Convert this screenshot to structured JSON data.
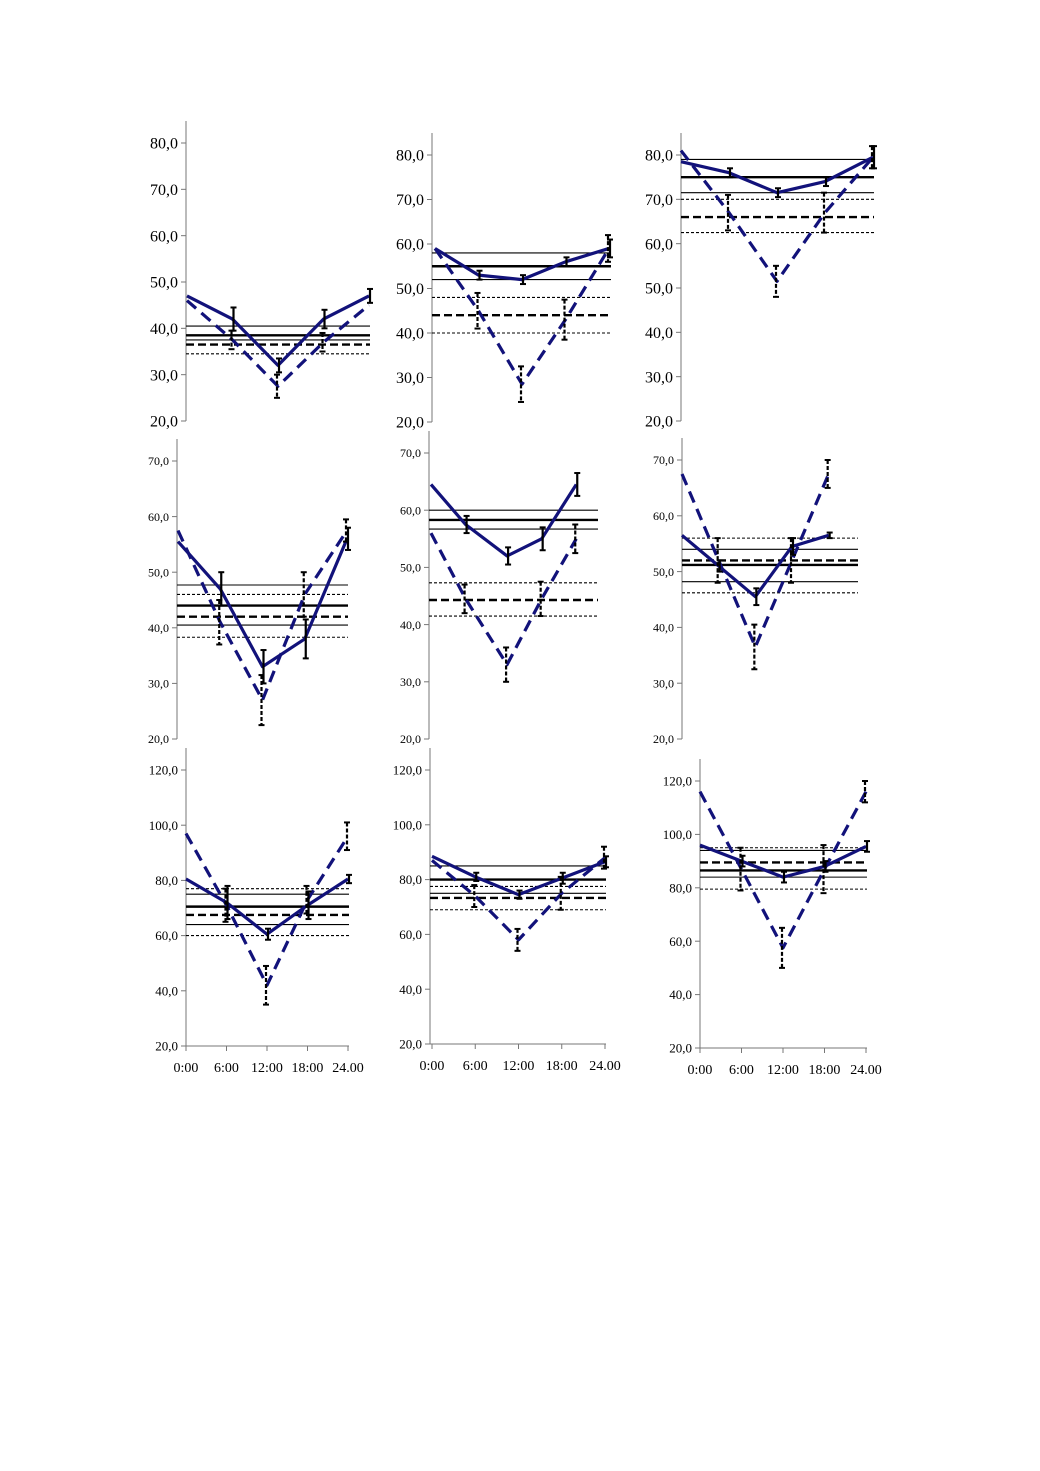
{
  "chart_data": [
    {
      "type": "line",
      "ylim": [
        20,
        80
      ],
      "yticks": [
        "20,0",
        "30,0",
        "40,0",
        "50,0",
        "60,0",
        "70,0",
        "80,0"
      ],
      "xticks": [],
      "series": [
        {
          "style": "solid",
          "x": [
            0,
            6,
            12,
            18,
            24
          ],
          "y": [
            47,
            42,
            32,
            42,
            47
          ],
          "err": [
            0,
            2.5,
            1.5,
            2,
            1.5
          ]
        },
        {
          "style": "dashed",
          "x": [
            0,
            6,
            12,
            18,
            24
          ],
          "y": [
            46,
            37.5,
            27.5,
            37,
            45
          ],
          "err": [
            0,
            2,
            2.5,
            2,
            0
          ]
        }
      ],
      "hlines": [
        {
          "style": "thin",
          "y": 40.5
        },
        {
          "style": "thick",
          "y": 38.5
        },
        {
          "style": "thin",
          "y": 37.5
        },
        {
          "style": "thin-dashed",
          "y": 38.5
        },
        {
          "style": "thick-dashed",
          "y": 36.5
        },
        {
          "style": "thin-dashed",
          "y": 34.5
        }
      ]
    },
    {
      "type": "line",
      "ylim": [
        20,
        80
      ],
      "yticks": [
        "20,0",
        "30,0",
        "40,0",
        "50,0",
        "60,0",
        "70,0",
        "80,0"
      ],
      "xticks": [],
      "series": [
        {
          "style": "solid",
          "x": [
            0,
            6,
            12,
            18,
            24
          ],
          "y": [
            59,
            53,
            52,
            56,
            59
          ],
          "err": [
            0,
            1,
            1,
            1,
            2
          ]
        },
        {
          "style": "dashed",
          "x": [
            0,
            6,
            12,
            18,
            24
          ],
          "y": [
            59,
            45,
            28.5,
            43,
            59
          ],
          "err": [
            0,
            4,
            4,
            4.5,
            3
          ]
        }
      ],
      "hlines": [
        {
          "style": "thin",
          "y": 58
        },
        {
          "style": "thick",
          "y": 55
        },
        {
          "style": "thin",
          "y": 52
        },
        {
          "style": "thin-dashed",
          "y": 48
        },
        {
          "style": "thick-dashed",
          "y": 44
        },
        {
          "style": "thin-dashed",
          "y": 40
        }
      ]
    },
    {
      "type": "line",
      "ylim": [
        20,
        80
      ],
      "yticks": [
        "20,0",
        "30,0",
        "40,0",
        "50,0",
        "60,0",
        "70,0",
        "80,0"
      ],
      "xticks": [],
      "series": [
        {
          "style": "solid",
          "x": [
            0,
            6,
            12,
            18,
            24
          ],
          "y": [
            78.5,
            76,
            71.5,
            74,
            79.5
          ],
          "err": [
            0,
            1,
            1,
            1,
            2.5
          ]
        },
        {
          "style": "dashed",
          "x": [
            0,
            6,
            12,
            18,
            24
          ],
          "y": [
            81,
            67,
            51.5,
            67,
            79.5
          ],
          "err": [
            0,
            4,
            3.5,
            4.5,
            2.5
          ]
        }
      ],
      "hlines": [
        {
          "style": "thin",
          "y": 79
        },
        {
          "style": "thick",
          "y": 75
        },
        {
          "style": "thin",
          "y": 71.5
        },
        {
          "style": "thin-dashed",
          "y": 70
        },
        {
          "style": "thick-dashed",
          "y": 66
        },
        {
          "style": "thin-dashed",
          "y": 62.5
        }
      ]
    },
    {
      "type": "line",
      "ylim": [
        20,
        70
      ],
      "yticks": [
        "20,0",
        "30,0",
        "40,0",
        "50,0",
        "60,0",
        "70,0"
      ],
      "xticks": [],
      "series": [
        {
          "style": "solid",
          "x": [
            0,
            6,
            12,
            18,
            24
          ],
          "y": [
            55.5,
            47,
            33,
            38,
            56
          ],
          "err": [
            0,
            3,
            3,
            3.5,
            2
          ]
        },
        {
          "style": "dashed",
          "x": [
            0,
            6,
            12,
            18,
            24
          ],
          "y": [
            57.5,
            41,
            27,
            46,
            57.5
          ],
          "err": [
            0,
            4,
            4.5,
            4,
            2
          ]
        }
      ],
      "hlines": [
        {
          "style": "thin",
          "y": 47.7
        },
        {
          "style": "thick",
          "y": 44
        },
        {
          "style": "thin",
          "y": 40.5
        },
        {
          "style": "thin-dashed",
          "y": 46
        },
        {
          "style": "thick-dashed",
          "y": 42
        },
        {
          "style": "thin-dashed",
          "y": 38.3
        }
      ]
    },
    {
      "type": "line",
      "ylim": [
        20,
        70
      ],
      "yticks": [
        "20,0",
        "30,0",
        "40,0",
        "50,0",
        "60,0",
        "70,0"
      ],
      "xticks": [],
      "series": [
        {
          "style": "solid",
          "x": [
            0,
            5,
            11,
            16,
            21
          ],
          "y": [
            64.5,
            57.5,
            52,
            55,
            64.5
          ],
          "err": [
            0,
            1.5,
            1.5,
            2,
            2
          ]
        },
        {
          "style": "dashed",
          "x": [
            0,
            5,
            11,
            16,
            21
          ],
          "y": [
            56,
            44.5,
            33,
            44.5,
            55
          ],
          "err": [
            0,
            2.5,
            3,
            3,
            2.5
          ]
        }
      ],
      "hlines": [
        {
          "style": "thin",
          "y": 60
        },
        {
          "style": "thick",
          "y": 58.3
        },
        {
          "style": "thin",
          "y": 56.7
        },
        {
          "style": "thin-dashed",
          "y": 47.3
        },
        {
          "style": "thick-dashed",
          "y": 44.3
        },
        {
          "style": "thin-dashed",
          "y": 41.5
        }
      ]
    },
    {
      "type": "line",
      "ylim": [
        20,
        70
      ],
      "yticks": [
        "20,0",
        "30,0",
        "40,0",
        "50,0",
        "60,0",
        "70,0"
      ],
      "xticks": [],
      "series": [
        {
          "style": "solid",
          "x": [
            0,
            5,
            10,
            15,
            20
          ],
          "y": [
            56.5,
            51,
            45.5,
            54.5,
            56.5
          ],
          "err": [
            0,
            1,
            1.5,
            1.5,
            0.5
          ]
        },
        {
          "style": "dashed",
          "x": [
            0,
            5,
            10,
            15,
            20
          ],
          "y": [
            67.5,
            52,
            36.5,
            52,
            67.5
          ],
          "err": [
            0,
            4,
            4,
            4,
            2.5
          ]
        }
      ],
      "hlines": [
        {
          "style": "thin",
          "y": 54
        },
        {
          "style": "thick",
          "y": 51.2
        },
        {
          "style": "thin",
          "y": 48.2
        },
        {
          "style": "thin-dashed",
          "y": 56
        },
        {
          "style": "thick-dashed",
          "y": 52
        },
        {
          "style": "thin-dashed",
          "y": 46.2
        }
      ]
    },
    {
      "type": "line",
      "ylim": [
        20,
        120
      ],
      "yticks": [
        "20,0",
        "40,0",
        "60,0",
        "80,0",
        "100,0",
        "120,0"
      ],
      "xticks": [
        "0:00",
        "6:00",
        "12:00",
        "18:00",
        "24.00"
      ],
      "series": [
        {
          "style": "solid",
          "x": [
            0,
            6,
            12,
            18,
            24
          ],
          "y": [
            80.5,
            72,
            60.5,
            71,
            80.5
          ],
          "err": [
            0,
            6,
            2,
            5,
            1.5
          ]
        },
        {
          "style": "dashed",
          "x": [
            0,
            6,
            12,
            18,
            24
          ],
          "y": [
            97,
            71,
            42,
            73,
            96
          ],
          "err": [
            0,
            6,
            7,
            5,
            5
          ]
        }
      ],
      "hlines": [
        {
          "style": "thin",
          "y": 75
        },
        {
          "style": "thick",
          "y": 70.5
        },
        {
          "style": "thin",
          "y": 64
        },
        {
          "style": "thin-dashed",
          "y": 77
        },
        {
          "style": "thick-dashed",
          "y": 67.5
        },
        {
          "style": "thin-dashed",
          "y": 60
        }
      ]
    },
    {
      "type": "line",
      "ylim": [
        20,
        120
      ],
      "yticks": [
        "20,0",
        "40,0",
        "60,0",
        "80,0",
        "100,0",
        "120,0"
      ],
      "xticks": [
        "0:00",
        "6:00",
        "12:00",
        "18:00",
        "24.00"
      ],
      "series": [
        {
          "style": "solid",
          "x": [
            0,
            6,
            12,
            18,
            24
          ],
          "y": [
            88.5,
            81,
            74.5,
            80.5,
            86.5
          ],
          "err": [
            0,
            1.5,
            1.5,
            2,
            2
          ]
        },
        {
          "style": "dashed",
          "x": [
            0,
            6,
            12,
            18,
            24
          ],
          "y": [
            87,
            74,
            58,
            75,
            88
          ],
          "err": [
            0,
            4,
            4,
            6,
            4
          ]
        }
      ],
      "hlines": [
        {
          "style": "thin",
          "y": 85
        },
        {
          "style": "thick",
          "y": 80
        },
        {
          "style": "thin",
          "y": 75
        },
        {
          "style": "thin-dashed",
          "y": 77.5
        },
        {
          "style": "thick-dashed",
          "y": 73.3
        },
        {
          "style": "thin-dashed",
          "y": 69
        }
      ]
    },
    {
      "type": "line",
      "ylim": [
        20,
        120
      ],
      "yticks": [
        "20,0",
        "40,0",
        "60,0",
        "80,0",
        "100,0",
        "120,0"
      ],
      "xticks": [
        "0:00",
        "6:00",
        "12:00",
        "18:00",
        "24.00"
      ],
      "series": [
        {
          "style": "solid",
          "x": [
            0,
            6,
            12,
            18,
            24
          ],
          "y": [
            96,
            90,
            84,
            88,
            95.5
          ],
          "err": [
            0,
            2,
            2,
            2,
            2
          ]
        },
        {
          "style": "dashed",
          "x": [
            0,
            6,
            12,
            18,
            24
          ],
          "y": [
            116,
            87,
            57.5,
            87,
            116
          ],
          "err": [
            0,
            8,
            7.5,
            9,
            4
          ]
        }
      ],
      "hlines": [
        {
          "style": "thin",
          "y": 94
        },
        {
          "style": "thick",
          "y": 86.5
        },
        {
          "style": "thin",
          "y": 84
        },
        {
          "style": "thin-dashed",
          "y": 95
        },
        {
          "style": "thick-dashed",
          "y": 89.5
        },
        {
          "style": "thin-dashed",
          "y": 79.5
        }
      ]
    }
  ]
}
